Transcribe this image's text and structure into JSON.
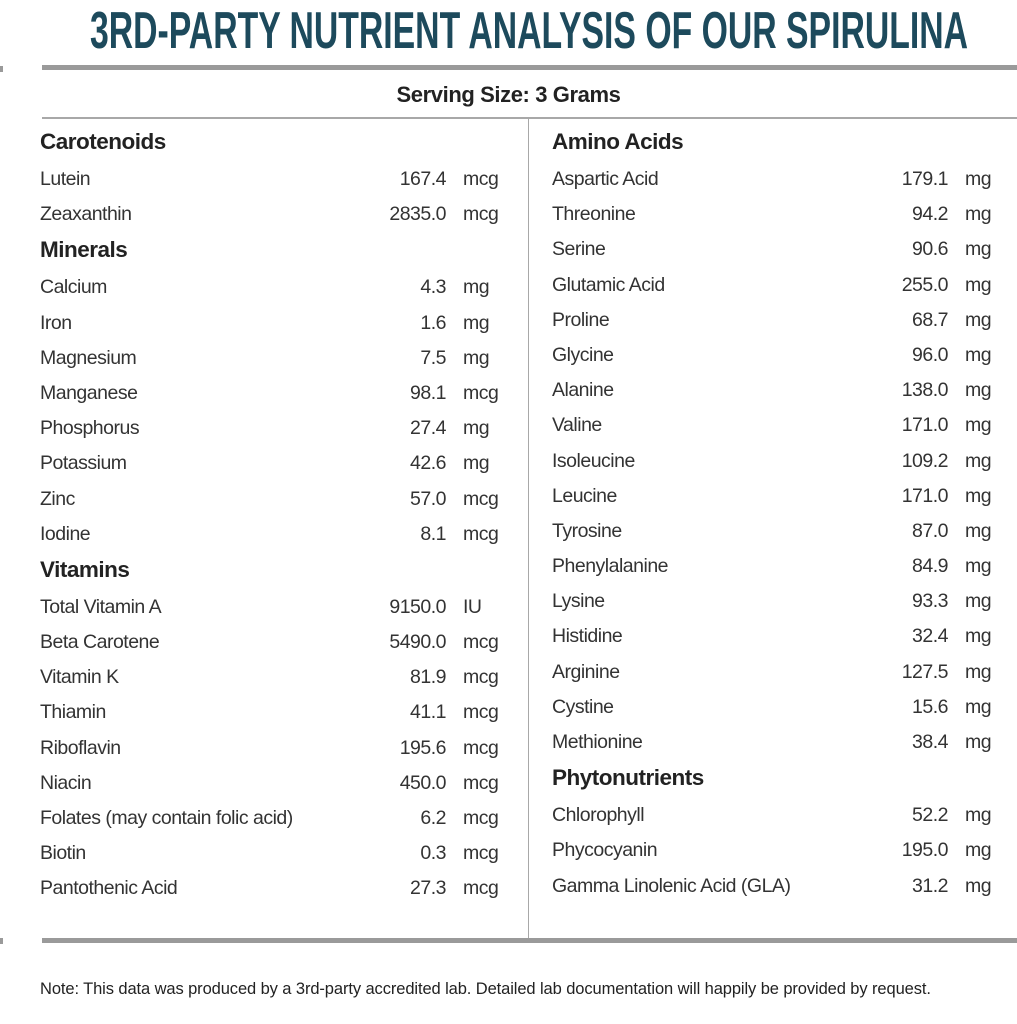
{
  "title": "3RD-PARTY NUTRIENT ANALYSIS OF OUR SPIRULINA",
  "serving_size": "Serving Size: 3 Grams",
  "colors": {
    "title": "#1d4a5c",
    "rules": "#9a9a9a"
  },
  "left_column": [
    {
      "section": "Carotenoids",
      "items": [
        {
          "name": "Lutein",
          "value": "167.4",
          "unit": "mcg"
        },
        {
          "name": "Zeaxanthin",
          "value": "2835.0",
          "unit": "mcg"
        }
      ]
    },
    {
      "section": "Minerals",
      "items": [
        {
          "name": "Calcium",
          "value": "4.3",
          "unit": "mg"
        },
        {
          "name": "Iron",
          "value": "1.6",
          "unit": "mg"
        },
        {
          "name": "Magnesium",
          "value": "7.5",
          "unit": "mg"
        },
        {
          "name": "Manganese",
          "value": "98.1",
          "unit": "mcg"
        },
        {
          "name": "Phosphorus",
          "value": "27.4",
          "unit": "mg"
        },
        {
          "name": "Potassium",
          "value": "42.6",
          "unit": "mg"
        },
        {
          "name": "Zinc",
          "value": "57.0",
          "unit": "mcg"
        },
        {
          "name": "Iodine",
          "value": "8.1",
          "unit": "mcg"
        }
      ]
    },
    {
      "section": "Vitamins",
      "items": [
        {
          "name": "Total Vitamin A",
          "value": "9150.0",
          "unit": "IU"
        },
        {
          "name": "Beta Carotene",
          "value": "5490.0",
          "unit": "mcg"
        },
        {
          "name": "Vitamin K",
          "value": "81.9",
          "unit": "mcg"
        },
        {
          "name": "Thiamin",
          "value": "41.1",
          "unit": "mcg"
        },
        {
          "name": "Riboflavin",
          "value": "195.6",
          "unit": "mcg"
        },
        {
          "name": "Niacin",
          "value": "450.0",
          "unit": "mcg"
        },
        {
          "name": "Folates (may contain folic acid)",
          "value": "6.2",
          "unit": "mcg"
        },
        {
          "name": "Biotin",
          "value": "0.3",
          "unit": "mcg"
        },
        {
          "name": "Pantothenic Acid",
          "value": "27.3",
          "unit": "mcg"
        }
      ]
    }
  ],
  "right_column": [
    {
      "section": "Amino Acids",
      "items": [
        {
          "name": "Aspartic Acid",
          "value": "179.1",
          "unit": "mg"
        },
        {
          "name": "Threonine",
          "value": "94.2",
          "unit": "mg"
        },
        {
          "name": "Serine",
          "value": "90.6",
          "unit": "mg"
        },
        {
          "name": "Glutamic Acid",
          "value": "255.0",
          "unit": "mg"
        },
        {
          "name": "Proline",
          "value": "68.7",
          "unit": "mg"
        },
        {
          "name": "Glycine",
          "value": "96.0",
          "unit": "mg"
        },
        {
          "name": "Alanine",
          "value": "138.0",
          "unit": "mg"
        },
        {
          "name": "Valine",
          "value": "171.0",
          "unit": "mg"
        },
        {
          "name": "Isoleucine",
          "value": "109.2",
          "unit": "mg"
        },
        {
          "name": "Leucine",
          "value": "171.0",
          "unit": "mg"
        },
        {
          "name": "Tyrosine",
          "value": "87.0",
          "unit": "mg"
        },
        {
          "name": "Phenylalanine",
          "value": "84.9",
          "unit": "mg"
        },
        {
          "name": "Lysine",
          "value": "93.3",
          "unit": "mg"
        },
        {
          "name": "Histidine",
          "value": "32.4",
          "unit": "mg"
        },
        {
          "name": "Arginine",
          "value": "127.5",
          "unit": "mg"
        },
        {
          "name": "Cystine",
          "value": "15.6",
          "unit": "mg"
        },
        {
          "name": "Methionine",
          "value": "38.4",
          "unit": "mg"
        }
      ]
    },
    {
      "section": "Phytonutrients",
      "items": [
        {
          "name": "Chlorophyll",
          "value": "52.2",
          "unit": "mg"
        },
        {
          "name": "Phycocyanin",
          "value": "195.0",
          "unit": "mg"
        },
        {
          "name": "Gamma Linolenic Acid (GLA)",
          "value": "31.2",
          "unit": "mg"
        }
      ]
    }
  ],
  "note": "Note: This data was produced by a 3rd-party accredited lab. Detailed lab documentation will happily be provided by request."
}
